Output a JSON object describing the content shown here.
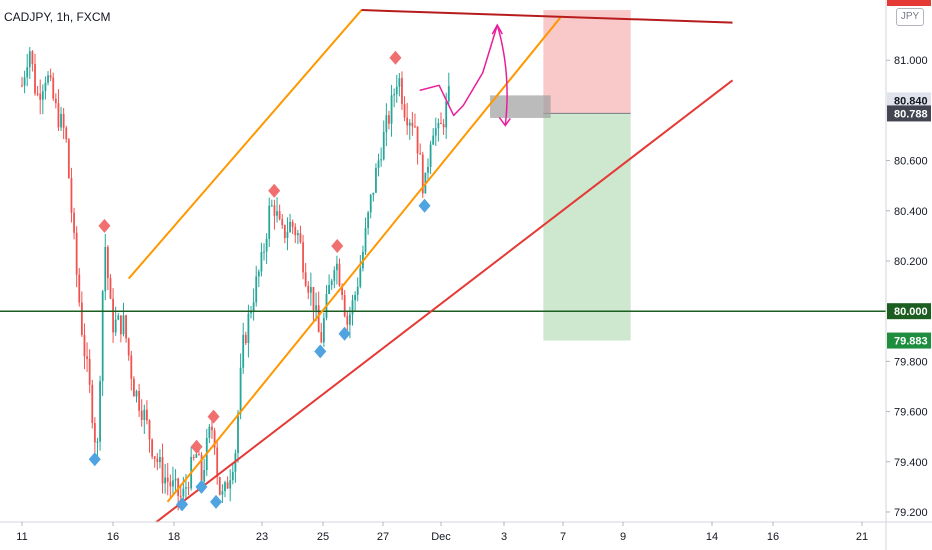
{
  "header": {
    "symbol": "CADJPY, 1h, FXCM",
    "currency": "JPY"
  },
  "colors": {
    "up": "#26a69a",
    "down": "#ef5350",
    "channel": "#ff9800",
    "support": "#e53935",
    "resistance": "#b71c1c",
    "level": "#1b5e20",
    "path": "#e91e9d",
    "stop_zone": "#f8bfbf",
    "target_zone": "#c8e6c9",
    "entry_box": "#9e9e9e",
    "high_marker": "#f06f6f",
    "low_marker": "#4fa3e0"
  },
  "chart_data": {
    "type": "candlestick",
    "title": "",
    "x_ticks": [
      "11",
      "16",
      "18",
      "23",
      "25",
      "27",
      "Dec",
      "3",
      "7",
      "9",
      "14",
      "16",
      "21"
    ],
    "y_ticks": [
      "79.200",
      "79.400",
      "79.600",
      "79.800",
      "80.200",
      "80.400",
      "80.600",
      "81.000"
    ],
    "ylim": [
      79.16,
      81.24
    ],
    "price_tags": [
      {
        "label": "80.840",
        "value": 80.84,
        "style": "gray"
      },
      {
        "label": "80.788",
        "value": 80.788,
        "style": "dark"
      },
      {
        "label": "80.000",
        "value": 80.0,
        "style": "green"
      },
      {
        "label": "79.883",
        "value": 79.883,
        "style": "green-bright"
      }
    ],
    "horizontal_level": 80.0,
    "position": {
      "entry": 80.788,
      "stop": 81.2,
      "target": 79.883,
      "x_start": 10.75,
      "x_end": 12.55
    },
    "entry_zone": {
      "low": 80.77,
      "high": 80.86,
      "x_start": 9.65,
      "x_end": 10.9
    },
    "channel_upper": [
      [
        2.2,
        80.13
      ],
      [
        7.0,
        81.2
      ]
    ],
    "channel_lower": [
      [
        3.0,
        79.24
      ],
      [
        11.1,
        81.17
      ]
    ],
    "support_line": [
      [
        2.5,
        79.12
      ],
      [
        14.65,
        80.92
      ]
    ],
    "resistance_line": [
      [
        7.0,
        81.2
      ],
      [
        14.65,
        81.15
      ]
    ],
    "projection": [
      [
        8.2,
        80.88
      ],
      [
        8.6,
        80.9
      ],
      [
        8.9,
        80.78
      ],
      [
        9.1,
        80.82
      ],
      [
        9.5,
        80.95
      ],
      [
        9.8,
        81.14
      ]
    ],
    "swing_highs": [
      [
        1.7,
        80.34
      ],
      [
        3.6,
        79.46
      ],
      [
        3.95,
        79.58
      ],
      [
        5.2,
        80.48
      ],
      [
        6.5,
        80.26
      ],
      [
        7.7,
        81.01
      ]
    ],
    "swing_lows": [
      [
        1.5,
        79.41
      ],
      [
        3.3,
        79.23
      ],
      [
        3.7,
        79.3
      ],
      [
        4.0,
        79.24
      ],
      [
        6.15,
        79.84
      ],
      [
        6.65,
        79.91
      ],
      [
        8.3,
        80.42
      ]
    ],
    "price_path": [
      [
        0.0,
        80.9
      ],
      [
        0.15,
        81.06
      ],
      [
        0.3,
        80.85
      ],
      [
        0.5,
        80.95
      ],
      [
        0.7,
        80.8
      ],
      [
        0.9,
        80.7
      ],
      [
        1.1,
        80.2
      ],
      [
        1.25,
        79.9
      ],
      [
        1.45,
        79.6
      ],
      [
        1.55,
        79.42
      ],
      [
        1.7,
        80.3
      ],
      [
        1.85,
        79.95
      ],
      [
        2.1,
        79.95
      ],
      [
        2.3,
        79.7
      ],
      [
        2.5,
        79.6
      ],
      [
        2.7,
        79.45
      ],
      [
        2.9,
        79.35
      ],
      [
        3.1,
        79.3
      ],
      [
        3.3,
        79.25
      ],
      [
        3.45,
        79.35
      ],
      [
        3.6,
        79.43
      ],
      [
        3.7,
        79.33
      ],
      [
        3.85,
        79.5
      ],
      [
        3.95,
        79.55
      ],
      [
        4.05,
        79.3
      ],
      [
        4.15,
        79.25
      ],
      [
        4.4,
        79.45
      ],
      [
        4.55,
        79.85
      ],
      [
        4.75,
        80.05
      ],
      [
        4.95,
        80.2
      ],
      [
        5.1,
        80.4
      ],
      [
        5.2,
        80.42
      ],
      [
        5.35,
        80.3
      ],
      [
        5.55,
        80.35
      ],
      [
        5.7,
        80.3
      ],
      [
        5.85,
        80.15
      ],
      [
        6.0,
        80.05
      ],
      [
        6.15,
        79.87
      ],
      [
        6.3,
        80.05
      ],
      [
        6.45,
        80.22
      ],
      [
        6.6,
        80.1
      ],
      [
        6.7,
        79.95
      ],
      [
        6.85,
        80.05
      ],
      [
        7.0,
        80.2
      ],
      [
        7.2,
        80.45
      ],
      [
        7.4,
        80.65
      ],
      [
        7.6,
        80.8
      ],
      [
        7.75,
        80.95
      ],
      [
        7.9,
        80.8
      ],
      [
        8.1,
        80.75
      ],
      [
        8.2,
        80.6
      ],
      [
        8.3,
        80.47
      ],
      [
        8.45,
        80.75
      ],
      [
        8.6,
        80.7
      ],
      [
        8.8,
        80.85
      ]
    ]
  }
}
